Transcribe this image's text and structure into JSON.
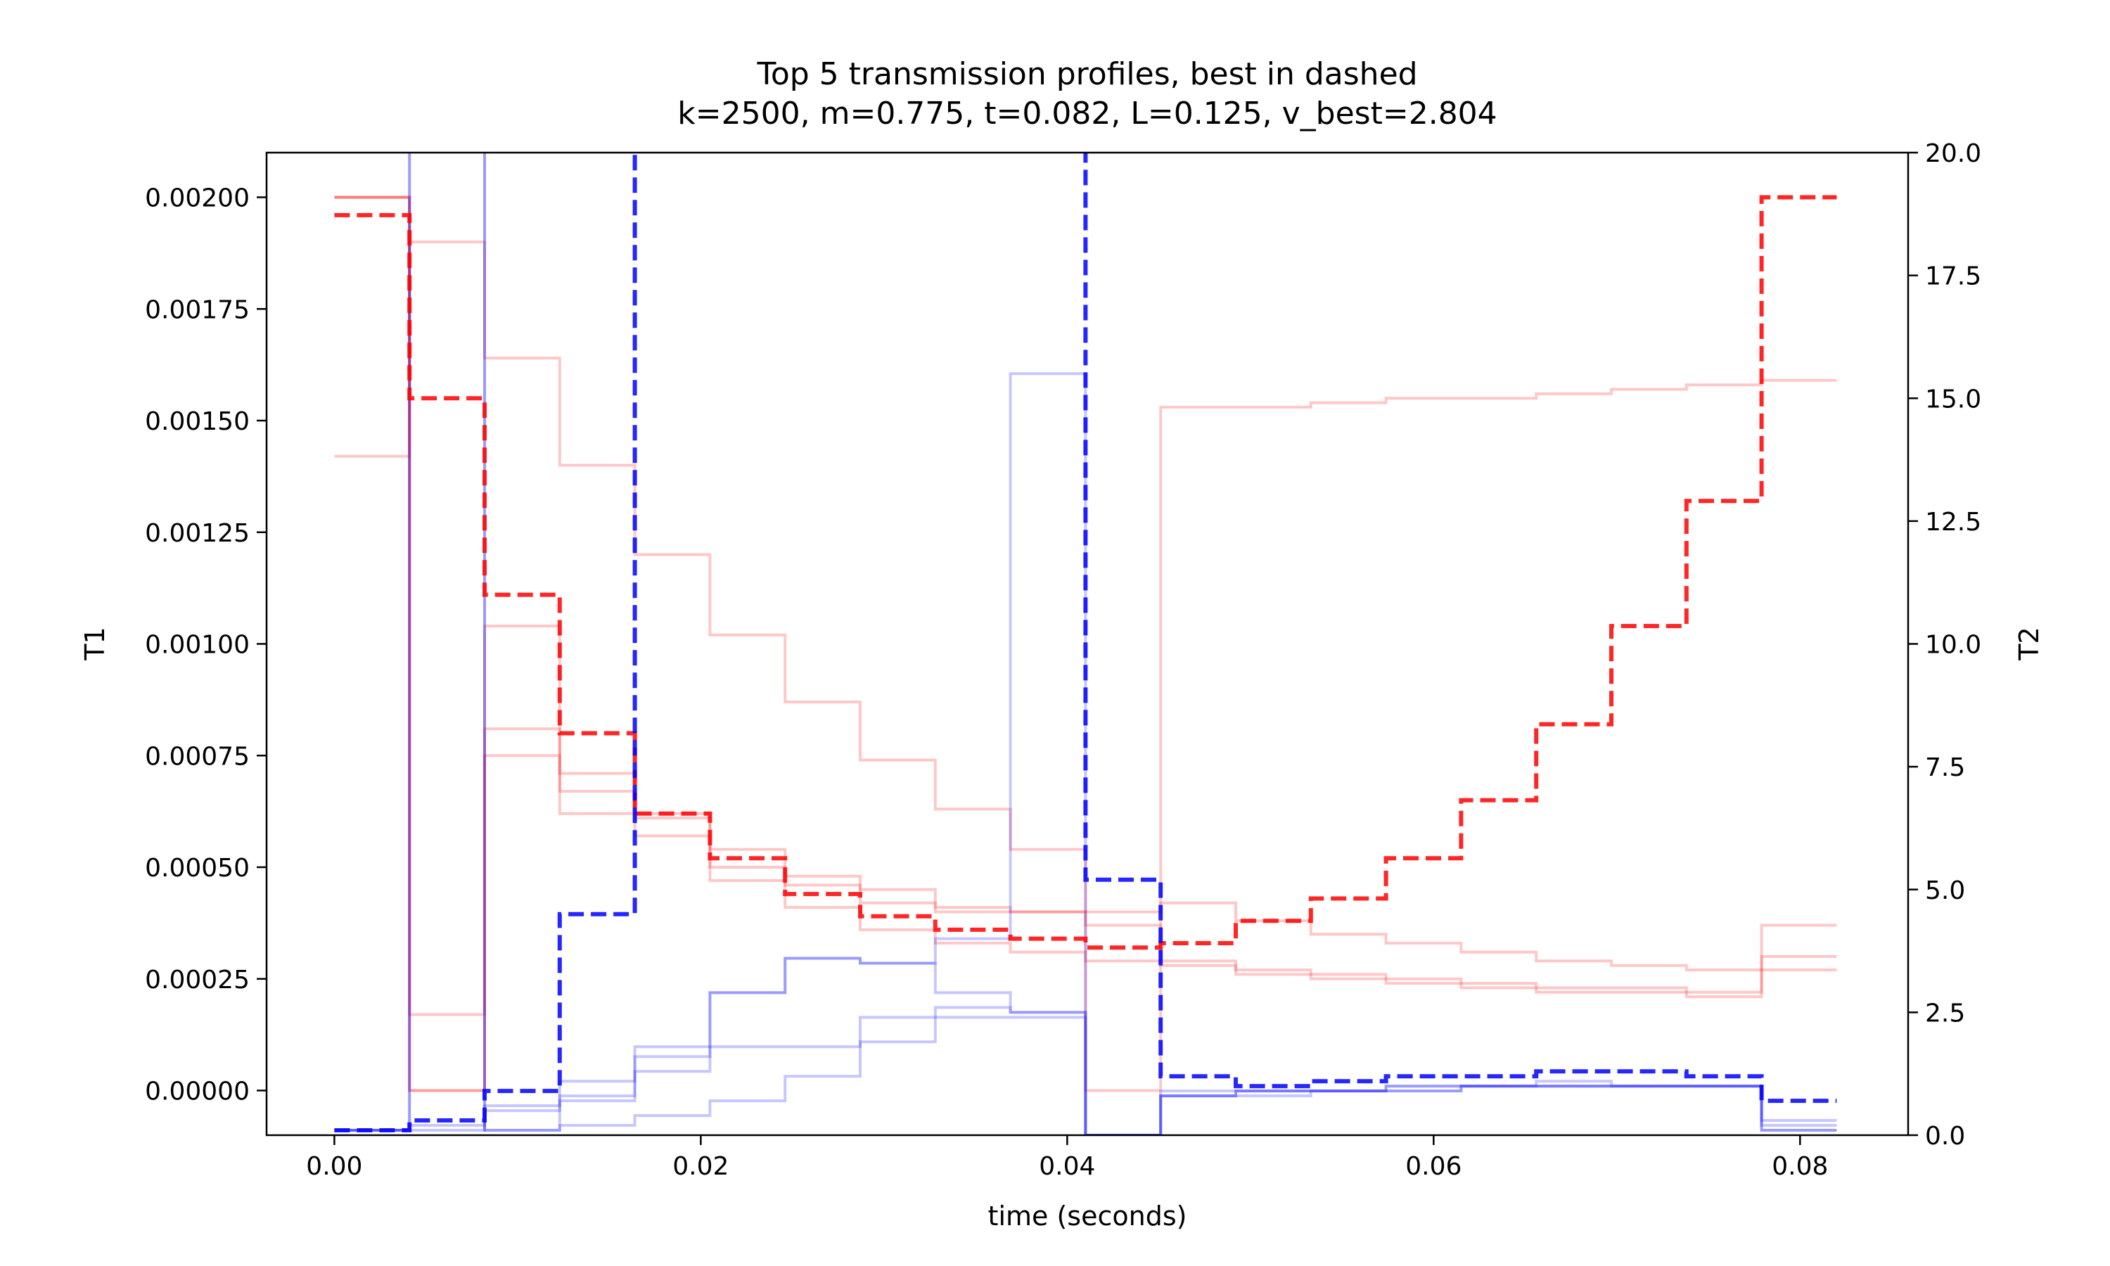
{
  "chart_data": {
    "type": "line",
    "title": "Top 5 transmission profiles, best in dashed",
    "subtitle": "k=2500, m=0.775, t=0.082, L=0.125, v_best=2.804",
    "xlabel": "time (seconds)",
    "ylabel_left": "T1",
    "ylabel_right": "T2",
    "xlim": [
      -0.0037,
      0.0859
    ],
    "ylim_left": [
      -0.0001,
      0.0021
    ],
    "ylim_right": [
      0,
      20
    ],
    "x_ticks": [
      "0.00",
      "0.02",
      "0.04",
      "0.06",
      "0.08"
    ],
    "x_tick_values": [
      0,
      0.02,
      0.04,
      0.06,
      0.08
    ],
    "y_left_ticks": [
      "0.00000",
      "0.00025",
      "0.00050",
      "0.00075",
      "0.00100",
      "0.00125",
      "0.00150",
      "0.00175",
      "0.00200"
    ],
    "y_left_tick_values": [
      0,
      0.00025,
      0.0005,
      0.00075,
      0.001,
      0.00125,
      0.0015,
      0.00175,
      0.002
    ],
    "y_right_ticks": [
      "0.0",
      "2.5",
      "5.0",
      "7.5",
      "10.0",
      "12.5",
      "15.0",
      "17.5",
      "20.0"
    ],
    "y_right_tick_values": [
      0,
      2.5,
      5,
      7.5,
      10,
      12.5,
      15,
      17.5,
      20
    ],
    "grid": false,
    "step_edges": [
      0,
      0.0041,
      0.0082,
      0.0123,
      0.0164,
      0.0205,
      0.0246,
      0.0287,
      0.0328,
      0.0369,
      0.041,
      0.0451,
      0.0492,
      0.0533,
      0.0574,
      0.0615,
      0.0656,
      0.0697,
      0.0738,
      0.0779,
      0.082
    ],
    "colors": {
      "t1": "#ff0000",
      "t2": "#0000ff",
      "t1_faint": "#ffc4c4",
      "t2_faint": "#c4c4ff"
    },
    "series": [
      {
        "axis": "T1",
        "best": true,
        "values": [
          0.00196,
          0.00155,
          0.00111,
          0.0008,
          0.00062,
          0.00052,
          0.00044,
          0.00039,
          0.00036,
          0.00034,
          0.00032,
          0.00033,
          0.00038,
          0.00043,
          0.00052,
          0.00065,
          0.00082,
          0.00104,
          0.00132,
          0.002
        ]
      },
      {
        "axis": "T1",
        "best": false,
        "values": [
          0.002,
          0.0,
          0.00104,
          0.00071,
          0.00061,
          0.00054,
          0.00048,
          0.00045,
          0.00041,
          0.0004,
          0.0004,
          0.00042,
          0.00038,
          0.00035,
          0.00033,
          0.00031,
          0.00029,
          0.00028,
          0.00027,
          0.00037
        ]
      },
      {
        "axis": "T1",
        "best": false,
        "values": [
          0.00142,
          0.0019,
          0.00164,
          0.0014,
          0.0012,
          0.00102,
          0.00087,
          0.00074,
          0.00063,
          0.00054,
          0.0,
          0.00153,
          0.00153,
          0.00154,
          0.00155,
          0.00155,
          0.00156,
          0.00157,
          0.00158,
          0.00159
        ]
      },
      {
        "axis": "T1",
        "best": false,
        "values": [
          0.002,
          0.00017,
          0.00081,
          0.00062,
          0.00062,
          0.0005,
          0.00046,
          0.00042,
          0.0004,
          0.0004,
          0.00037,
          0.00029,
          0.00027,
          0.00026,
          0.00025,
          0.00024,
          0.00023,
          0.00023,
          0.00022,
          0.0003
        ]
      },
      {
        "axis": "T1",
        "best": false,
        "values": [
          0.002,
          0.0,
          0.00075,
          0.00067,
          0.00057,
          0.00047,
          0.00041,
          0.00036,
          0.00033,
          0.00031,
          0.00029,
          0.00028,
          0.00026,
          0.00025,
          0.00024,
          0.00023,
          0.00022,
          0.00022,
          0.00021,
          0.00027
        ]
      },
      {
        "axis": "T2",
        "best": true,
        "values": [
          0.1,
          0.3,
          0.9,
          4.5,
          95,
          95,
          95,
          95,
          95,
          95,
          5.2,
          1.2,
          1.0,
          1.1,
          1.2,
          1.2,
          1.3,
          1.3,
          1.2,
          0.7
        ]
      },
      {
        "axis": "T2",
        "best": false,
        "values": [
          0.1,
          95,
          0.1,
          1.1,
          1.8,
          2.9,
          3.6,
          3.5,
          4.0,
          15.5,
          0.0,
          0.9,
          0.9,
          0.9,
          1.0,
          1.0,
          1.1,
          1.0,
          1.0,
          0.1
        ]
      },
      {
        "axis": "T2",
        "best": false,
        "values": [
          0.1,
          0.2,
          0.5,
          0.8,
          1.6,
          2.9,
          3.6,
          3.5,
          2.9,
          2.5,
          0.0,
          0.8,
          0.9,
          0.9,
          0.9,
          1.0,
          1.0,
          1.0,
          1.0,
          0.2
        ]
      },
      {
        "axis": "T2",
        "best": false,
        "values": [
          0.1,
          0.1,
          0.6,
          0.7,
          1.3,
          1.8,
          1.8,
          2.4,
          2.4,
          2.4,
          0.0,
          0.8,
          0.9,
          0.9,
          1.0,
          1.0,
          1.0,
          1.0,
          1.0,
          0.3
        ]
      },
      {
        "axis": "T2",
        "best": false,
        "values": [
          0.1,
          95,
          0.1,
          0.2,
          0.4,
          0.7,
          1.2,
          1.9,
          2.6,
          2.5,
          0.0,
          0.8,
          0.8,
          0.9,
          0.9,
          1.0,
          1.0,
          1.0,
          1.0,
          0.1
        ]
      }
    ]
  }
}
